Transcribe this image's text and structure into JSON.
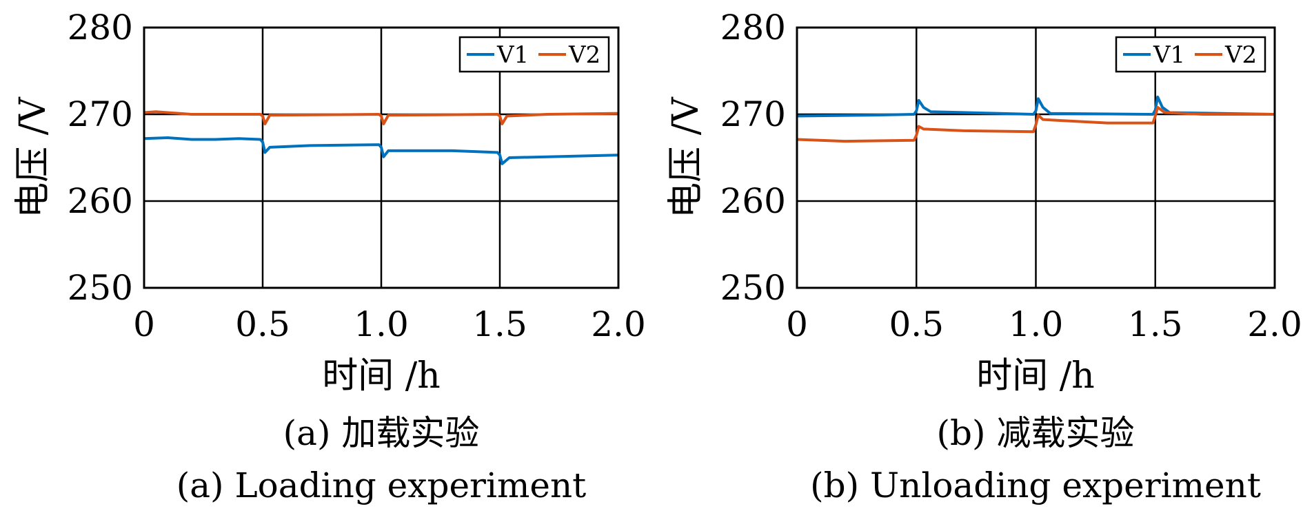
{
  "chart_data": [
    {
      "type": "line",
      "panel": "a",
      "xlabel": "时间 /h",
      "ylabel": "电压 /V",
      "caption_cn": "(a) 加载实验",
      "caption_en": "(a) Loading experiment",
      "xlim": [
        0,
        2.0
      ],
      "ylim": [
        250,
        280
      ],
      "xticks": [
        0,
        0.5,
        1.0,
        1.5,
        2.0
      ],
      "xtick_labels": [
        "0",
        "0.5",
        "1.0",
        "1.5",
        "2.0"
      ],
      "yticks": [
        250,
        260,
        270,
        280
      ],
      "ytick_labels": [
        "250",
        "260",
        "270",
        "280"
      ],
      "grid": true,
      "legend_position": "top-right",
      "series": [
        {
          "name": "V1",
          "color": "#0072BD",
          "points": [
            [
              0,
              267.2
            ],
            [
              0.1,
              267.3
            ],
            [
              0.2,
              267.1
            ],
            [
              0.3,
              267.1
            ],
            [
              0.4,
              267.2
            ],
            [
              0.49,
              267.1
            ],
            [
              0.5,
              266.8
            ],
            [
              0.51,
              265.6
            ],
            [
              0.53,
              266.2
            ],
            [
              0.7,
              266.4
            ],
            [
              0.99,
              266.5
            ],
            [
              1.0,
              266.2
            ],
            [
              1.01,
              265.1
            ],
            [
              1.03,
              265.8
            ],
            [
              1.3,
              265.8
            ],
            [
              1.49,
              265.6
            ],
            [
              1.5,
              265.3
            ],
            [
              1.51,
              264.3
            ],
            [
              1.54,
              265.0
            ],
            [
              1.7,
              265.1
            ],
            [
              2.0,
              265.3
            ]
          ]
        },
        {
          "name": "V2",
          "color": "#D95319",
          "points": [
            [
              0,
              270.2
            ],
            [
              0.05,
              270.3
            ],
            [
              0.2,
              270.0
            ],
            [
              0.49,
              270.0
            ],
            [
              0.5,
              269.8
            ],
            [
              0.51,
              268.9
            ],
            [
              0.53,
              269.9
            ],
            [
              0.99,
              270.0
            ],
            [
              1.0,
              269.8
            ],
            [
              1.01,
              268.9
            ],
            [
              1.03,
              269.9
            ],
            [
              1.49,
              270.0
            ],
            [
              1.5,
              269.8
            ],
            [
              1.51,
              268.9
            ],
            [
              1.53,
              269.8
            ],
            [
              1.7,
              270.0
            ],
            [
              2.0,
              270.1
            ]
          ]
        }
      ]
    },
    {
      "type": "line",
      "panel": "b",
      "xlabel": "时间 /h",
      "ylabel": "电压 /V",
      "caption_cn": "(b) 减载实验",
      "caption_en": "(b) Unloading experiment",
      "xlim": [
        0,
        2.0
      ],
      "ylim": [
        250,
        280
      ],
      "xticks": [
        0,
        0.5,
        1.0,
        1.5,
        2.0
      ],
      "xtick_labels": [
        "0",
        "0.5",
        "1.0",
        "1.5",
        "2.0"
      ],
      "yticks": [
        250,
        260,
        270,
        280
      ],
      "ytick_labels": [
        "250",
        "260",
        "270",
        "280"
      ],
      "grid": true,
      "legend_position": "top-right",
      "series": [
        {
          "name": "V1",
          "color": "#0072BD",
          "points": [
            [
              0,
              269.8
            ],
            [
              0.3,
              269.9
            ],
            [
              0.49,
              270.0
            ],
            [
              0.5,
              270.4
            ],
            [
              0.51,
              271.6
            ],
            [
              0.53,
              270.8
            ],
            [
              0.56,
              270.3
            ],
            [
              0.99,
              270.0
            ],
            [
              1.0,
              270.4
            ],
            [
              1.01,
              271.8
            ],
            [
              1.03,
              270.8
            ],
            [
              1.06,
              270.1
            ],
            [
              1.49,
              270.0
            ],
            [
              1.5,
              270.5
            ],
            [
              1.51,
              272.0
            ],
            [
              1.53,
              270.8
            ],
            [
              1.56,
              270.2
            ],
            [
              2.0,
              270.0
            ]
          ]
        },
        {
          "name": "V2",
          "color": "#D95319",
          "points": [
            [
              0,
              267.1
            ],
            [
              0.2,
              266.9
            ],
            [
              0.49,
              267.0
            ],
            [
              0.5,
              267.6
            ],
            [
              0.51,
              268.6
            ],
            [
              0.53,
              268.3
            ],
            [
              0.7,
              268.1
            ],
            [
              0.99,
              268.0
            ],
            [
              1.0,
              268.8
            ],
            [
              1.01,
              269.9
            ],
            [
              1.03,
              269.4
            ],
            [
              1.3,
              269.0
            ],
            [
              1.49,
              269.0
            ],
            [
              1.5,
              269.8
            ],
            [
              1.51,
              270.8
            ],
            [
              1.54,
              270.2
            ],
            [
              1.7,
              270.0
            ],
            [
              2.0,
              270.0
            ]
          ]
        }
      ]
    }
  ]
}
